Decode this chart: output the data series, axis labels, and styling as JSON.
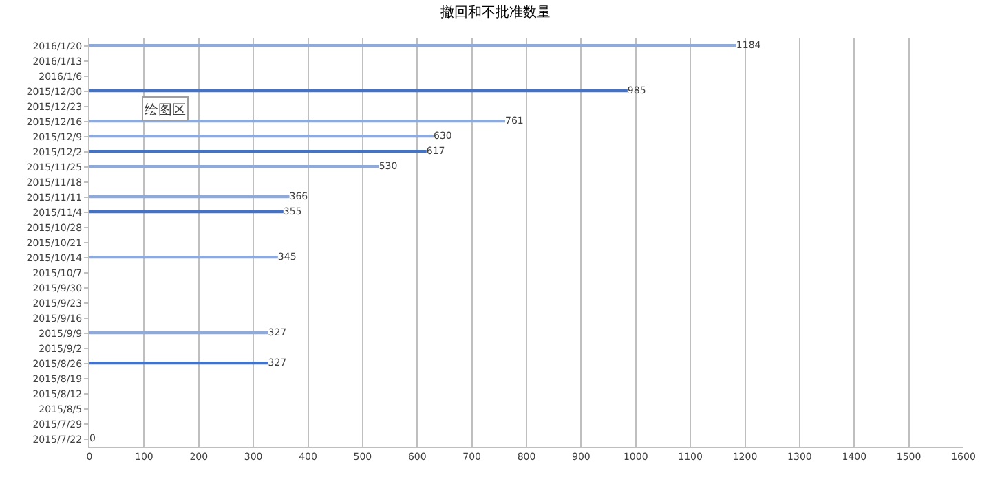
{
  "chart_data": {
    "type": "bar",
    "orientation": "horizontal",
    "title": "撤回和不批准数量",
    "categories": [
      "2016/1/20",
      "2016/1/13",
      "2016/1/6",
      "2015/12/30",
      "2015/12/23",
      "2015/12/16",
      "2015/12/9",
      "2015/12/2",
      "2015/11/25",
      "2015/11/18",
      "2015/11/11",
      "2015/11/4",
      "2015/10/28",
      "2015/10/21",
      "2015/10/14",
      "2015/10/7",
      "2015/9/30",
      "2015/9/23",
      "2015/9/16",
      "2015/9/9",
      "2015/9/2",
      "2015/8/26",
      "2015/8/19",
      "2015/8/12",
      "2015/8/5",
      "2015/7/29",
      "2015/7/22"
    ],
    "values": [
      1184,
      null,
      null,
      985,
      null,
      761,
      630,
      617,
      530,
      null,
      366,
      355,
      null,
      null,
      345,
      null,
      null,
      null,
      null,
      327,
      null,
      327,
      null,
      null,
      null,
      null,
      0
    ],
    "colors": [
      "#8eaadb",
      null,
      null,
      "#4472c4",
      null,
      "#8eaadb",
      "#8eaadb",
      "#4472c4",
      "#8eaadb",
      null,
      "#8eaadb",
      "#4472c4",
      null,
      null,
      "#8eaadb",
      null,
      null,
      null,
      null,
      "#8eaadb",
      null,
      "#4472c4",
      null,
      null,
      null,
      null,
      "#4472c4"
    ],
    "data_labels": true,
    "xlim": [
      0,
      1600
    ],
    "xticks": [
      0,
      100,
      200,
      300,
      400,
      500,
      600,
      700,
      800,
      900,
      1000,
      1100,
      1200,
      1300,
      1400,
      1500,
      1600
    ],
    "grid": "x",
    "annotations": [
      "绘图区"
    ]
  }
}
